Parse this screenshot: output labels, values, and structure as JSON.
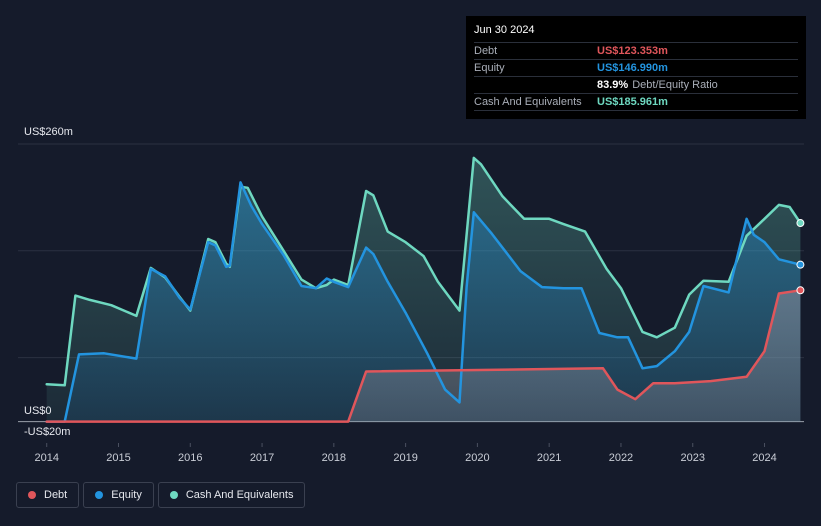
{
  "tooltip": {
    "date": "Jun 30 2024",
    "debt_label": "Debt",
    "debt_value": "US$123.353m",
    "equity_label": "Equity",
    "equity_value": "US$146.990m",
    "ratio_value": "83.9%",
    "ratio_label": "Debt/Equity Ratio",
    "cash_label": "Cash And Equivalents",
    "cash_value": "US$185.961m"
  },
  "legend": {
    "debt": "Debt",
    "equity": "Equity",
    "cash": "Cash And Equivalents"
  },
  "colors": {
    "background": "#151b2b",
    "debt": "#e0565b",
    "equity": "#2394df",
    "cash": "#6ed8c0"
  },
  "chart_data": {
    "type": "area",
    "y_top_label": "US$260m",
    "y_zero_label": "US$0",
    "y_bottom_label": "-US$20m",
    "ylim": [
      -20,
      260
    ],
    "xlim": [
      2013.6,
      2024.55
    ],
    "x_ticks": [
      "2014",
      "2015",
      "2016",
      "2017",
      "2018",
      "2019",
      "2020",
      "2021",
      "2022",
      "2023",
      "2024"
    ],
    "grid": true,
    "legend_position": "bottom-left",
    "series": [
      {
        "name": "Cash And Equivalents",
        "color": "#6ed8c0",
        "points": [
          [
            2014.0,
            35
          ],
          [
            2014.25,
            34
          ],
          [
            2014.4,
            118
          ],
          [
            2014.6,
            114
          ],
          [
            2014.9,
            109
          ],
          [
            2015.25,
            99
          ],
          [
            2015.45,
            144
          ],
          [
            2015.65,
            135
          ],
          [
            2015.85,
            117
          ],
          [
            2016.0,
            104
          ],
          [
            2016.25,
            171
          ],
          [
            2016.35,
            168
          ],
          [
            2016.5,
            148
          ],
          [
            2016.55,
            145
          ],
          [
            2016.7,
            220
          ],
          [
            2016.8,
            219
          ],
          [
            2017.0,
            192
          ],
          [
            2017.3,
            160
          ],
          [
            2017.55,
            133
          ],
          [
            2017.75,
            125
          ],
          [
            2017.9,
            128
          ],
          [
            2018.0,
            133
          ],
          [
            2018.2,
            128
          ],
          [
            2018.45,
            216
          ],
          [
            2018.55,
            212
          ],
          [
            2018.75,
            178
          ],
          [
            2019.0,
            168
          ],
          [
            2019.25,
            155
          ],
          [
            2019.45,
            131
          ],
          [
            2019.75,
            104
          ],
          [
            2019.95,
            247
          ],
          [
            2020.05,
            241
          ],
          [
            2020.35,
            211
          ],
          [
            2020.65,
            190
          ],
          [
            2020.95,
            190
          ],
          [
            2021.0,
            190
          ],
          [
            2021.2,
            185
          ],
          [
            2021.5,
            178
          ],
          [
            2021.8,
            143
          ],
          [
            2022.0,
            125
          ],
          [
            2022.3,
            84
          ],
          [
            2022.5,
            79
          ],
          [
            2022.75,
            88
          ],
          [
            2022.95,
            119
          ],
          [
            2023.15,
            132
          ],
          [
            2023.5,
            131
          ],
          [
            2023.75,
            174
          ],
          [
            2024.0,
            190
          ],
          [
            2024.2,
            203
          ],
          [
            2024.35,
            201
          ],
          [
            2024.5,
            186
          ]
        ]
      },
      {
        "name": "Equity",
        "color": "#2394df",
        "points": [
          [
            2014.0,
            0
          ],
          [
            2014.25,
            0
          ],
          [
            2014.45,
            63
          ],
          [
            2014.8,
            64
          ],
          [
            2015.25,
            59
          ],
          [
            2015.45,
            143
          ],
          [
            2015.65,
            136
          ],
          [
            2015.85,
            116
          ],
          [
            2016.0,
            105
          ],
          [
            2016.25,
            168
          ],
          [
            2016.35,
            165
          ],
          [
            2016.5,
            145
          ],
          [
            2016.55,
            146
          ],
          [
            2016.7,
            224
          ],
          [
            2016.85,
            202
          ],
          [
            2017.0,
            185
          ],
          [
            2017.3,
            156
          ],
          [
            2017.55,
            127
          ],
          [
            2017.75,
            125
          ],
          [
            2017.9,
            134
          ],
          [
            2018.0,
            131
          ],
          [
            2018.2,
            126
          ],
          [
            2018.45,
            163
          ],
          [
            2018.55,
            157
          ],
          [
            2018.75,
            131
          ],
          [
            2019.0,
            102
          ],
          [
            2019.3,
            64
          ],
          [
            2019.55,
            30
          ],
          [
            2019.75,
            18
          ],
          [
            2019.85,
            126
          ],
          [
            2019.95,
            196
          ],
          [
            2020.2,
            176
          ],
          [
            2020.6,
            141
          ],
          [
            2020.9,
            126
          ],
          [
            2021.2,
            125
          ],
          [
            2021.45,
            125
          ],
          [
            2021.7,
            83
          ],
          [
            2021.95,
            79
          ],
          [
            2022.1,
            79
          ],
          [
            2022.3,
            50
          ],
          [
            2022.5,
            52
          ],
          [
            2022.75,
            66
          ],
          [
            2022.95,
            84
          ],
          [
            2023.15,
            127
          ],
          [
            2023.5,
            121
          ],
          [
            2023.75,
            190
          ],
          [
            2023.85,
            175
          ],
          [
            2024.0,
            168
          ],
          [
            2024.2,
            152
          ],
          [
            2024.5,
            147
          ]
        ]
      },
      {
        "name": "Debt",
        "color": "#e0565b",
        "points": [
          [
            2014.0,
            0
          ],
          [
            2018.2,
            0
          ],
          [
            2018.45,
            47
          ],
          [
            2021.75,
            50
          ],
          [
            2021.95,
            30
          ],
          [
            2022.2,
            21
          ],
          [
            2022.45,
            36
          ],
          [
            2022.75,
            36
          ],
          [
            2023.25,
            38
          ],
          [
            2023.75,
            42
          ],
          [
            2024.0,
            66
          ],
          [
            2024.2,
            120
          ],
          [
            2024.5,
            123
          ]
        ]
      }
    ]
  }
}
